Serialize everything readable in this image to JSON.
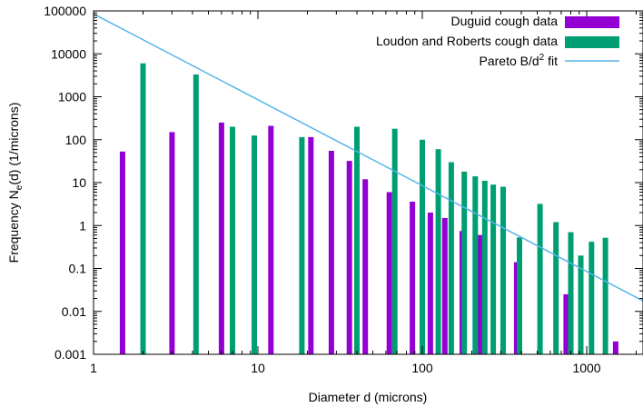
{
  "chart_data": {
    "type": "bar",
    "x_scale": "log",
    "y_scale": "log",
    "xlim": [
      1,
      2200
    ],
    "ylim": [
      0.001,
      100000
    ],
    "xlabel": "Diameter d (microns)",
    "ylabel_base": "Frequency N",
    "ylabel_sub": "e",
    "ylabel_tail": "(d) (1/microns)",
    "x_ticks": [
      {
        "value": 1,
        "label": "1"
      },
      {
        "value": 10,
        "label": "10"
      },
      {
        "value": 100,
        "label": "100"
      },
      {
        "value": 1000,
        "label": "1000"
      }
    ],
    "y_ticks": [
      {
        "value": 0.001,
        "label": "0.001"
      },
      {
        "value": 0.01,
        "label": "0.01"
      },
      {
        "value": 0.1,
        "label": "0.1"
      },
      {
        "value": 1,
        "label": "1"
      },
      {
        "value": 10,
        "label": "10"
      },
      {
        "value": 100,
        "label": "100"
      },
      {
        "value": 1000,
        "label": "1000"
      },
      {
        "value": 10000,
        "label": "10000"
      },
      {
        "value": 100000,
        "label": "100000"
      }
    ],
    "grid": false,
    "legend_position": "top-right",
    "series": [
      {
        "name": "Duguid cough data",
        "color": "#9400d3",
        "points": [
          {
            "x": 1.5,
            "y": 53
          },
          {
            "x": 3,
            "y": 150
          },
          {
            "x": 6,
            "y": 250
          },
          {
            "x": 12,
            "y": 210
          },
          {
            "x": 21,
            "y": 115
          },
          {
            "x": 28,
            "y": 55
          },
          {
            "x": 36,
            "y": 32
          },
          {
            "x": 45,
            "y": 12
          },
          {
            "x": 63,
            "y": 6
          },
          {
            "x": 87,
            "y": 3.6
          },
          {
            "x": 112,
            "y": 2
          },
          {
            "x": 137,
            "y": 1.5
          },
          {
            "x": 175,
            "y": 0.75
          },
          {
            "x": 225,
            "y": 0.6
          },
          {
            "x": 375,
            "y": 0.14
          },
          {
            "x": 750,
            "y": 0.025
          },
          {
            "x": 1500,
            "y": 0.002
          }
        ]
      },
      {
        "name": "Loudon and Roberts cough data",
        "color": "#009e73",
        "points": [
          {
            "x": 2,
            "y": 6000
          },
          {
            "x": 4.2,
            "y": 3300
          },
          {
            "x": 7,
            "y": 200
          },
          {
            "x": 9.5,
            "y": 125
          },
          {
            "x": 18.5,
            "y": 115
          },
          {
            "x": 40,
            "y": 200
          },
          {
            "x": 68,
            "y": 180
          },
          {
            "x": 100,
            "y": 100
          },
          {
            "x": 125,
            "y": 60
          },
          {
            "x": 150,
            "y": 30
          },
          {
            "x": 180,
            "y": 18
          },
          {
            "x": 210,
            "y": 14
          },
          {
            "x": 240,
            "y": 11
          },
          {
            "x": 270,
            "y": 9
          },
          {
            "x": 310,
            "y": 8
          },
          {
            "x": 390,
            "y": 0.53
          },
          {
            "x": 520,
            "y": 3.2
          },
          {
            "x": 650,
            "y": 1.2
          },
          {
            "x": 800,
            "y": 0.7
          },
          {
            "x": 920,
            "y": 0.2
          },
          {
            "x": 1070,
            "y": 0.42
          },
          {
            "x": 1300,
            "y": 0.52
          }
        ]
      }
    ],
    "fit": {
      "name_base": "Pareto B/d",
      "name_sup": "2",
      "name_tail": " fit",
      "color": "#56b4e9",
      "coefficient_B": 85000,
      "exponent": -2
    }
  }
}
